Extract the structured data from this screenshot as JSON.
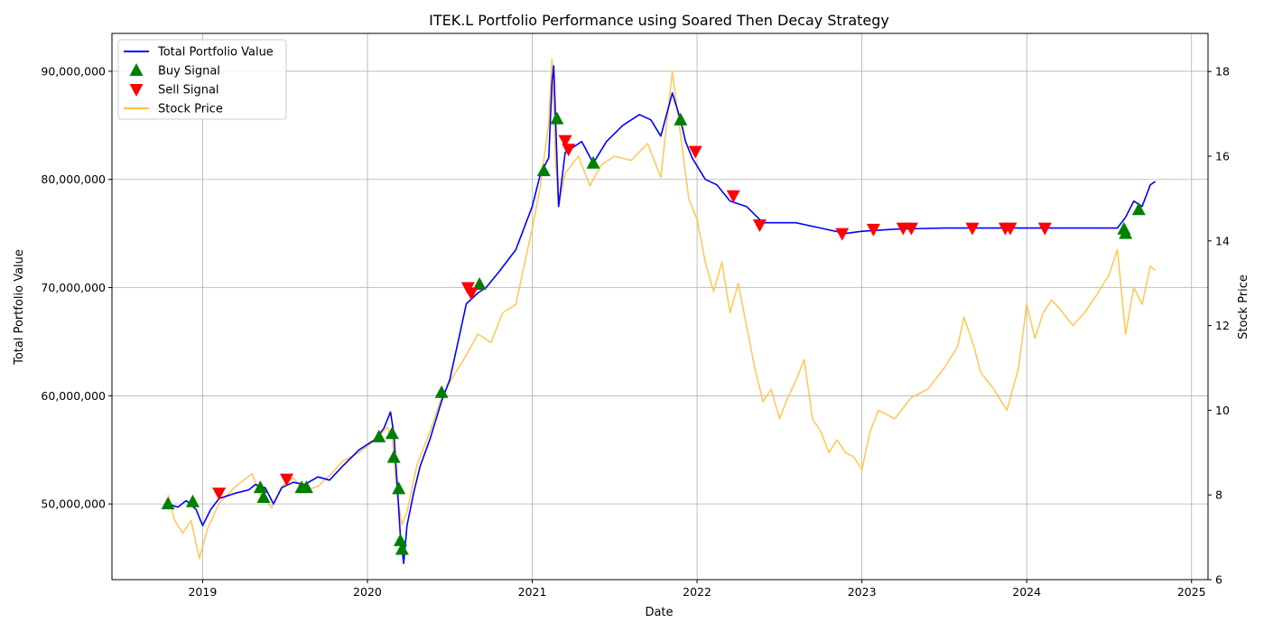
{
  "chart_data": {
    "type": "line",
    "title": "ITEK.L Portfolio Performance using Soared Then Decay Strategy",
    "xlabel": "Date",
    "ylabel_left": "Total Portfolio Value",
    "ylabel_right": "Stock Price",
    "x_ticks": [
      "2019",
      "2020",
      "2021",
      "2022",
      "2023",
      "2024",
      "2025"
    ],
    "y_left_ticks": [
      "50,000,000",
      "60,000,000",
      "70,000,000",
      "80,000,000",
      "90,000,000"
    ],
    "y_right_ticks": [
      "6",
      "8",
      "10",
      "12",
      "14",
      "16",
      "18"
    ],
    "xlim": [
      2018.45,
      2025.1
    ],
    "ylim_left": [
      43000000,
      93500000
    ],
    "ylim_right": [
      6.0,
      18.9
    ],
    "grid": true,
    "legend_placement": "top-left",
    "colors": {
      "portfolio": "#0000ff",
      "price": "#ffbf3f",
      "buy": "#008000",
      "sell": "#ff0000"
    },
    "series": [
      {
        "name": "Total Portfolio Value",
        "axis": "left",
        "points": [
          [
            2018.79,
            50000000
          ],
          [
            2018.85,
            49700000
          ],
          [
            2018.9,
            50300000
          ],
          [
            2018.96,
            49500000
          ],
          [
            2019.0,
            48000000
          ],
          [
            2019.05,
            49500000
          ],
          [
            2019.1,
            50500000
          ],
          [
            2019.2,
            51000000
          ],
          [
            2019.28,
            51300000
          ],
          [
            2019.32,
            51800000
          ],
          [
            2019.38,
            51500000
          ],
          [
            2019.43,
            50000000
          ],
          [
            2019.48,
            51500000
          ],
          [
            2019.55,
            52000000
          ],
          [
            2019.62,
            51800000
          ],
          [
            2019.7,
            52500000
          ],
          [
            2019.77,
            52200000
          ],
          [
            2019.85,
            53500000
          ],
          [
            2019.95,
            55000000
          ],
          [
            2020.0,
            55500000
          ],
          [
            2020.05,
            56000000
          ],
          [
            2020.1,
            57000000
          ],
          [
            2020.14,
            58500000
          ],
          [
            2020.16,
            56500000
          ],
          [
            2020.18,
            52000000
          ],
          [
            2020.2,
            47000000
          ],
          [
            2020.22,
            44500000
          ],
          [
            2020.24,
            48000000
          ],
          [
            2020.28,
            51000000
          ],
          [
            2020.32,
            53500000
          ],
          [
            2020.38,
            56000000
          ],
          [
            2020.45,
            59500000
          ],
          [
            2020.5,
            61500000
          ],
          [
            2020.55,
            65000000
          ],
          [
            2020.6,
            68500000
          ],
          [
            2020.67,
            69500000
          ],
          [
            2020.72,
            70000000
          ],
          [
            2020.8,
            71500000
          ],
          [
            2020.9,
            73500000
          ],
          [
            2021.0,
            77500000
          ],
          [
            2021.05,
            80500000
          ],
          [
            2021.1,
            82000000
          ],
          [
            2021.12,
            89000000
          ],
          [
            2021.13,
            90500000
          ],
          [
            2021.16,
            77500000
          ],
          [
            2021.2,
            82500000
          ],
          [
            2021.3,
            83500000
          ],
          [
            2021.37,
            81500000
          ],
          [
            2021.45,
            83500000
          ],
          [
            2021.55,
            85000000
          ],
          [
            2021.65,
            86000000
          ],
          [
            2021.72,
            85500000
          ],
          [
            2021.78,
            84000000
          ],
          [
            2021.85,
            88000000
          ],
          [
            2021.9,
            85500000
          ],
          [
            2021.93,
            83500000
          ],
          [
            2021.97,
            82000000
          ],
          [
            2022.05,
            80000000
          ],
          [
            2022.12,
            79500000
          ],
          [
            2022.2,
            78000000
          ],
          [
            2022.3,
            77500000
          ],
          [
            2022.4,
            76000000
          ],
          [
            2022.6,
            76000000
          ],
          [
            2022.75,
            75500000
          ],
          [
            2022.9,
            75000000
          ],
          [
            2023.0,
            75200000
          ],
          [
            2023.2,
            75400000
          ],
          [
            2023.5,
            75500000
          ],
          [
            2024.0,
            75500000
          ],
          [
            2024.55,
            75500000
          ],
          [
            2024.6,
            76500000
          ],
          [
            2024.65,
            78000000
          ],
          [
            2024.7,
            77500000
          ],
          [
            2024.75,
            79500000
          ],
          [
            2024.78,
            79800000
          ]
        ]
      },
      {
        "name": "Stock Price",
        "axis": "right",
        "points": [
          [
            2018.79,
            8.0
          ],
          [
            2018.83,
            7.4
          ],
          [
            2018.88,
            7.1
          ],
          [
            2018.93,
            7.4
          ],
          [
            2018.98,
            6.5
          ],
          [
            2019.03,
            7.2
          ],
          [
            2019.1,
            7.8
          ],
          [
            2019.2,
            8.2
          ],
          [
            2019.3,
            8.5
          ],
          [
            2019.35,
            8.0
          ],
          [
            2019.42,
            7.7
          ],
          [
            2019.48,
            8.2
          ],
          [
            2019.55,
            8.4
          ],
          [
            2019.62,
            8.1
          ],
          [
            2019.7,
            8.2
          ],
          [
            2019.78,
            8.5
          ],
          [
            2019.85,
            8.8
          ],
          [
            2019.95,
            9.0
          ],
          [
            2020.05,
            9.3
          ],
          [
            2020.12,
            9.6
          ],
          [
            2020.15,
            9.4
          ],
          [
            2020.18,
            8.0
          ],
          [
            2020.21,
            7.3
          ],
          [
            2020.24,
            7.6
          ],
          [
            2020.3,
            8.7
          ],
          [
            2020.38,
            9.5
          ],
          [
            2020.45,
            10.3
          ],
          [
            2020.52,
            10.8
          ],
          [
            2020.6,
            11.3
          ],
          [
            2020.67,
            11.8
          ],
          [
            2020.75,
            11.6
          ],
          [
            2020.82,
            12.3
          ],
          [
            2020.9,
            12.5
          ],
          [
            2021.0,
            14.3
          ],
          [
            2021.05,
            15.3
          ],
          [
            2021.1,
            16.8
          ],
          [
            2021.12,
            18.3
          ],
          [
            2021.14,
            16.0
          ],
          [
            2021.16,
            14.8
          ],
          [
            2021.2,
            15.6
          ],
          [
            2021.28,
            16.0
          ],
          [
            2021.35,
            15.3
          ],
          [
            2021.42,
            15.8
          ],
          [
            2021.5,
            16.0
          ],
          [
            2021.6,
            15.9
          ],
          [
            2021.7,
            16.3
          ],
          [
            2021.78,
            15.5
          ],
          [
            2021.85,
            18.0
          ],
          [
            2021.9,
            16.5
          ],
          [
            2021.95,
            15.0
          ],
          [
            2022.0,
            14.5
          ],
          [
            2022.05,
            13.5
          ],
          [
            2022.1,
            12.8
          ],
          [
            2022.15,
            13.5
          ],
          [
            2022.2,
            12.3
          ],
          [
            2022.25,
            13.0
          ],
          [
            2022.3,
            12.0
          ],
          [
            2022.35,
            11.0
          ],
          [
            2022.4,
            10.2
          ],
          [
            2022.45,
            10.5
          ],
          [
            2022.5,
            9.8
          ],
          [
            2022.55,
            10.3
          ],
          [
            2022.6,
            10.7
          ],
          [
            2022.65,
            11.2
          ],
          [
            2022.7,
            9.8
          ],
          [
            2022.75,
            9.5
          ],
          [
            2022.8,
            9.0
          ],
          [
            2022.85,
            9.3
          ],
          [
            2022.9,
            9.0
          ],
          [
            2022.95,
            8.9
          ],
          [
            2023.0,
            8.6
          ],
          [
            2023.05,
            9.5
          ],
          [
            2023.1,
            10.0
          ],
          [
            2023.2,
            9.8
          ],
          [
            2023.3,
            10.3
          ],
          [
            2023.4,
            10.5
          ],
          [
            2023.5,
            11.0
          ],
          [
            2023.58,
            11.5
          ],
          [
            2023.62,
            12.2
          ],
          [
            2023.68,
            11.5
          ],
          [
            2023.72,
            10.9
          ],
          [
            2023.8,
            10.5
          ],
          [
            2023.88,
            10.0
          ],
          [
            2023.95,
            11.0
          ],
          [
            2024.0,
            12.5
          ],
          [
            2024.05,
            11.7
          ],
          [
            2024.1,
            12.3
          ],
          [
            2024.15,
            12.6
          ],
          [
            2024.2,
            12.4
          ],
          [
            2024.28,
            12.0
          ],
          [
            2024.35,
            12.3
          ],
          [
            2024.42,
            12.7
          ],
          [
            2024.5,
            13.2
          ],
          [
            2024.55,
            13.8
          ],
          [
            2024.6,
            11.8
          ],
          [
            2024.65,
            12.9
          ],
          [
            2024.7,
            12.5
          ],
          [
            2024.75,
            13.4
          ],
          [
            2024.78,
            13.3
          ]
        ]
      }
    ],
    "buy_signals": [
      [
        2018.79,
        50000000
      ],
      [
        2018.94,
        50200000
      ],
      [
        2019.35,
        51500000
      ],
      [
        2019.37,
        50600000
      ],
      [
        2019.6,
        51500000
      ],
      [
        2019.63,
        51500000
      ],
      [
        2020.07,
        56200000
      ],
      [
        2020.15,
        56500000
      ],
      [
        2020.16,
        54300000
      ],
      [
        2020.19,
        51400000
      ],
      [
        2020.2,
        46600000
      ],
      [
        2020.21,
        45800000
      ],
      [
        2020.45,
        60300000
      ],
      [
        2020.68,
        70300000
      ],
      [
        2021.07,
        80800000
      ],
      [
        2021.15,
        85600000
      ],
      [
        2021.37,
        81500000
      ],
      [
        2021.9,
        85500000
      ],
      [
        2024.59,
        75400000
      ],
      [
        2024.6,
        75000000
      ],
      [
        2024.68,
        77200000
      ]
    ],
    "sell_signals": [
      [
        2019.1,
        51000000
      ],
      [
        2019.51,
        52300000
      ],
      [
        2020.61,
        70000000
      ],
      [
        2020.63,
        69500000
      ],
      [
        2021.2,
        83600000
      ],
      [
        2021.22,
        82800000
      ],
      [
        2021.99,
        82600000
      ],
      [
        2022.22,
        78500000
      ],
      [
        2022.38,
        75800000
      ],
      [
        2022.88,
        75000000
      ],
      [
        2023.07,
        75400000
      ],
      [
        2023.25,
        75500000
      ],
      [
        2023.3,
        75500000
      ],
      [
        2023.67,
        75500000
      ],
      [
        2023.87,
        75500000
      ],
      [
        2023.9,
        75500000
      ],
      [
        2024.11,
        75500000
      ]
    ],
    "legend": [
      {
        "label": "Total Portfolio Value",
        "kind": "line",
        "color": "#0000ff"
      },
      {
        "label": "Buy Signal",
        "kind": "triangle-up",
        "color": "#008000"
      },
      {
        "label": "Sell Signal",
        "kind": "triangle-down",
        "color": "#ff0000"
      },
      {
        "label": "Stock Price",
        "kind": "line",
        "color": "#ffbf3f"
      }
    ]
  }
}
